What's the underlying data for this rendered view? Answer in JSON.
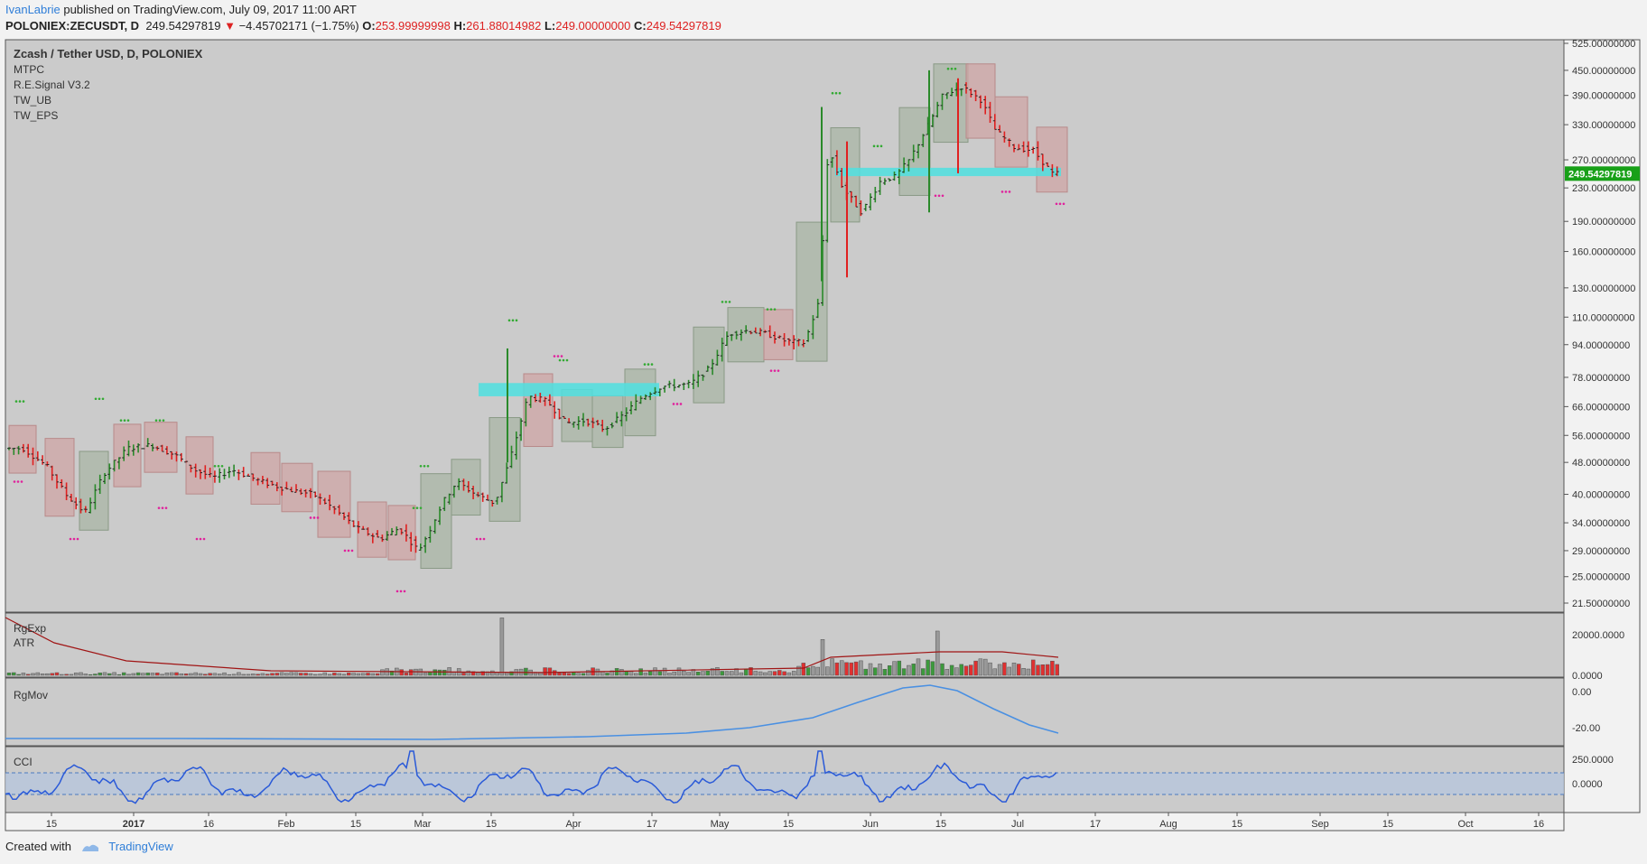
{
  "header": {
    "author": "IvanLabrie",
    "published": "published on TradingView.com, July 09, 2017 11:00 ART"
  },
  "symbol_bar": {
    "symbol": "POLONIEX:ZECUSDT, D",
    "price": "249.54297819",
    "change": "−4.45702171 (−1.75%)",
    "open_label": "O:",
    "open": "253.99999998",
    "high_label": "H:",
    "high": "261.88014982",
    "low_label": "L:",
    "low": "249.00000000",
    "close_label": "C:",
    "close": "249.54297819"
  },
  "legend": {
    "title": "Zcash / Tether USD, D, POLONIEX",
    "indicators": [
      "MTPC",
      "R.E.Signal V3.2",
      "TW_UB",
      "TW_EPS"
    ]
  },
  "pane_labels": {
    "volume": [
      "RgExp",
      "ATR"
    ],
    "rgmov": "RgMov",
    "cci": "CCI"
  },
  "footer": {
    "created": "Created with",
    "brand": "TradingView"
  },
  "colors": {
    "up": "#2a8a2a",
    "down": "#e02020",
    "box_up": "#a9b5a5",
    "box_down": "#cfa5a5",
    "zone": "#4fe0e0",
    "last_price": "#18a018",
    "line_blue": "#4a90e2",
    "atr": "#a01515"
  },
  "chart_data": {
    "type": "candlestick",
    "scale": "log",
    "price_axis_ticks": [
      "525.00000000",
      "450.00000000",
      "390.00000000",
      "330.00000000",
      "270.00000000",
      "230.00000000",
      "190.00000000",
      "160.00000000",
      "130.00000000",
      "110.00000000",
      "94.00000000",
      "78.00000000",
      "66.00000000",
      "56.00000000",
      "48.00000000",
      "40.00000000",
      "34.00000000",
      "29.00000000",
      "25.00000000",
      "21.50000000"
    ],
    "last_price": "249.54297819",
    "time_axis_ticks": [
      "15",
      "2017",
      "16",
      "Feb",
      "15",
      "Mar",
      "15",
      "Apr",
      "17",
      "May",
      "15",
      "Jun",
      "15",
      "Jul",
      "17",
      "Aug",
      "15",
      "Sep",
      "15",
      "Oct",
      "16"
    ],
    "price_path": [
      [
        "2016-12-05",
        52
      ],
      [
        "2016-12-10",
        47
      ],
      [
        "2016-12-14",
        40
      ],
      [
        "2016-12-18",
        36
      ],
      [
        "2016-12-22",
        45
      ],
      [
        "2016-12-27",
        52
      ],
      [
        "2017-01-01",
        53
      ],
      [
        "2017-01-06",
        50
      ],
      [
        "2017-01-10",
        46
      ],
      [
        "2017-01-14",
        44
      ],
      [
        "2017-01-18",
        46
      ],
      [
        "2017-01-24",
        43
      ],
      [
        "2017-01-30",
        41
      ],
      [
        "2017-02-04",
        40
      ],
      [
        "2017-02-08",
        37
      ],
      [
        "2017-02-13",
        33
      ],
      [
        "2017-02-18",
        31
      ],
      [
        "2017-02-22",
        33
      ],
      [
        "2017-02-26",
        29
      ],
      [
        "2017-02-28",
        32
      ],
      [
        "2017-03-03",
        38
      ],
      [
        "2017-03-06",
        43
      ],
      [
        "2017-03-10",
        40
      ],
      [
        "2017-03-14",
        38
      ],
      [
        "2017-03-17",
        48
      ],
      [
        "2017-03-21",
        70
      ],
      [
        "2017-03-25",
        68
      ],
      [
        "2017-03-29",
        60
      ],
      [
        "2017-04-02",
        61
      ],
      [
        "2017-04-06",
        58
      ],
      [
        "2017-04-10",
        63
      ],
      [
        "2017-04-14",
        70
      ],
      [
        "2017-04-18",
        74
      ],
      [
        "2017-04-24",
        75
      ],
      [
        "2017-04-28",
        82
      ],
      [
        "2017-05-02",
        100
      ],
      [
        "2017-05-06",
        102
      ],
      [
        "2017-05-10",
        100
      ],
      [
        "2017-05-14",
        96
      ],
      [
        "2017-05-18",
        95
      ],
      [
        "2017-05-21",
        120
      ],
      [
        "2017-05-23",
        290
      ],
      [
        "2017-05-26",
        230
      ],
      [
        "2017-05-30",
        200
      ],
      [
        "2017-06-03",
        240
      ],
      [
        "2017-06-06",
        245
      ],
      [
        "2017-06-09",
        270
      ],
      [
        "2017-06-13",
        330
      ],
      [
        "2017-06-16",
        390
      ],
      [
        "2017-06-20",
        410
      ],
      [
        "2017-06-24",
        380
      ],
      [
        "2017-06-27",
        320
      ],
      [
        "2017-07-01",
        290
      ],
      [
        "2017-07-05",
        285
      ],
      [
        "2017-07-09",
        249.54
      ]
    ],
    "volume_axis_ticks": [
      "20000.0000",
      "0.0000"
    ],
    "rgmov_axis_ticks": [
      "0.00",
      "-20.00"
    ],
    "cci_axis_ticks": [
      "250.0000",
      "0.0000"
    ]
  }
}
